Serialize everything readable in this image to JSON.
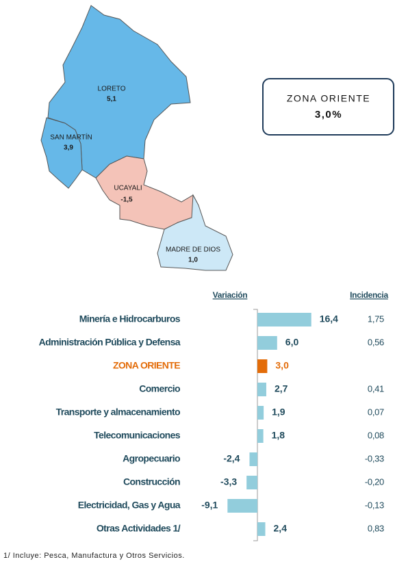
{
  "map": {
    "regions": [
      {
        "name": "LORETO",
        "value": "5,1"
      },
      {
        "name": "SAN MARTÍN",
        "value": "3,9"
      },
      {
        "name": "UCAYALI",
        "value": "-1,5"
      },
      {
        "name": "MADRE DE DIOS",
        "value": "1,0"
      }
    ]
  },
  "zone_box": {
    "title": "ZONA ORIENTE",
    "value": "3,0%"
  },
  "chart_data": {
    "type": "bar",
    "orientation": "horizontal",
    "value_header": "Variación",
    "incidence_header": "Incidencia",
    "categories": [
      "Minería e Hidrocarburos",
      "Administración Pública y Defensa",
      "ZONA ORIENTE",
      "Comercio",
      "Transporte y almacenamiento",
      "Telecomunicaciones",
      "Agropecuario",
      "Construcción",
      "Electricidad, Gas y Agua",
      "Otras Actividades 1/"
    ],
    "values": [
      16.4,
      6.0,
      3.0,
      2.7,
      1.9,
      1.8,
      -2.4,
      -3.3,
      -9.1,
      2.4
    ],
    "value_labels": [
      "16,4",
      "6,0",
      "3,0",
      "2,7",
      "1,9",
      "1,8",
      "-2,4",
      "-3,3",
      "-9,1",
      "2,4"
    ],
    "incidence": [
      "1,75",
      "0,56",
      null,
      "0,41",
      "0,07",
      "0,08",
      "-0,33",
      "-0,20",
      "-0,13",
      "0,83"
    ],
    "colors": [
      "#92cddc",
      "#92cddc",
      "#e36c09",
      "#92cddc",
      "#92cddc",
      "#92cddc",
      "#92cddc",
      "#92cddc",
      "#92cddc",
      "#92cddc"
    ],
    "label_color": "#1f4a5c",
    "xlim": [
      -10,
      20
    ],
    "footnote": "1/ Incluye: Pesca, Manufactura y Otros Servicios."
  }
}
